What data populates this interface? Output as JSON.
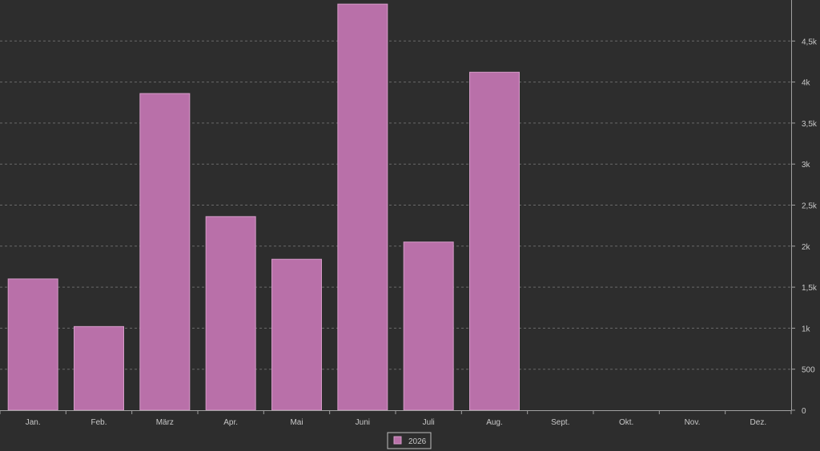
{
  "colors": {
    "background": "#2d2d2d",
    "bar_fill": "#b970a9",
    "bar_stroke": "#d59bc8",
    "grid": "#6a6a6a",
    "axis": "#a0a0a0",
    "tick_text": "#c8c8c8",
    "legend_border": "#bdbdbd"
  },
  "chart_data": {
    "type": "bar",
    "categories": [
      "Jan.",
      "Feb.",
      "März",
      "Apr.",
      "Mai",
      "Juni",
      "Juli",
      "Aug.",
      "Sept.",
      "Okt.",
      "Nov.",
      "Dez."
    ],
    "series": [
      {
        "name": "2026",
        "values": [
          1600,
          1020,
          3860,
          2360,
          1840,
          4950,
          2050,
          4120,
          0,
          0,
          0,
          0
        ]
      }
    ],
    "title": "",
    "xlabel": "",
    "ylabel": "",
    "ylim": [
      0,
      5000
    ],
    "yticks": [
      0,
      500,
      1000,
      1500,
      2000,
      2500,
      3000,
      3500,
      4000,
      4500
    ],
    "ytick_labels": [
      "0",
      "500",
      "1k",
      "1,5k",
      "2k",
      "2,5k",
      "3k",
      "3,5k",
      "4k",
      "4,5k"
    ],
    "y_axis_position": "right",
    "grid": true,
    "legend_position": "bottom-center"
  }
}
